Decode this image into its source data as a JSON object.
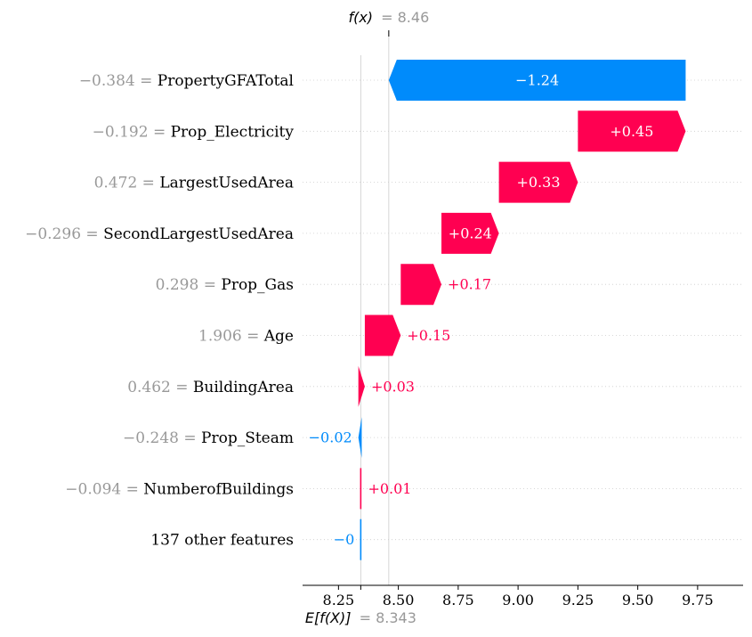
{
  "chart_data": {
    "type": "waterfall",
    "base_value_label": "E[f(X)]",
    "base_value_text": "= 8.343",
    "base_value": 8.343,
    "output_value_label": "f(x)",
    "output_value_text": "= 8.46",
    "output_value": 8.46,
    "xlim": [
      8.1,
      9.94
    ],
    "x_ticks": [
      8.25,
      8.5,
      8.75,
      9.0,
      9.25,
      9.5,
      9.75
    ],
    "x_tick_labels": [
      "8.25",
      "8.50",
      "8.75",
      "9.00",
      "9.25",
      "9.50",
      "9.75"
    ],
    "colors": {
      "positive": "#ff0051",
      "negative": "#008bfb",
      "feature_value": "#999999",
      "grid": "#cccccc"
    },
    "features": [
      {
        "value_text": "−0.384",
        "name": "PropertyGFATotal",
        "start": 9.7,
        "end": 8.46,
        "label": "−1.24",
        "sign": "neg"
      },
      {
        "value_text": "−0.192",
        "name": "Prop_Electricity",
        "start": 9.25,
        "end": 9.7,
        "label": "+0.45",
        "sign": "pos"
      },
      {
        "value_text": "0.472",
        "name": "LargestUsedArea",
        "start": 8.92,
        "end": 9.25,
        "label": "+0.33",
        "sign": "pos"
      },
      {
        "value_text": "−0.296",
        "name": "SecondLargestUsedArea",
        "start": 8.68,
        "end": 8.92,
        "label": "+0.24",
        "sign": "pos"
      },
      {
        "value_text": "0.298",
        "name": "Prop_Gas",
        "start": 8.51,
        "end": 8.68,
        "label": "+0.17",
        "sign": "pos"
      },
      {
        "value_text": "1.906",
        "name": "Age",
        "start": 8.36,
        "end": 8.51,
        "label": "+0.15",
        "sign": "pos"
      },
      {
        "value_text": "0.462",
        "name": "BuildingArea",
        "start": 8.333,
        "end": 8.36,
        "label": "+0.03",
        "sign": "pos"
      },
      {
        "value_text": "−0.248",
        "name": "Prop_Steam",
        "start": 8.347,
        "end": 8.333,
        "label": "−0.02",
        "sign": "neg"
      },
      {
        "value_text": "−0.094",
        "name": "NumberofBuildings",
        "start": 8.343,
        "end": 8.347,
        "label": "+0.01",
        "sign": "pos"
      },
      {
        "value_text": "",
        "name": "137 other features",
        "start": 8.343,
        "end": 8.343,
        "label": "−0",
        "sign": "neg"
      }
    ]
  }
}
